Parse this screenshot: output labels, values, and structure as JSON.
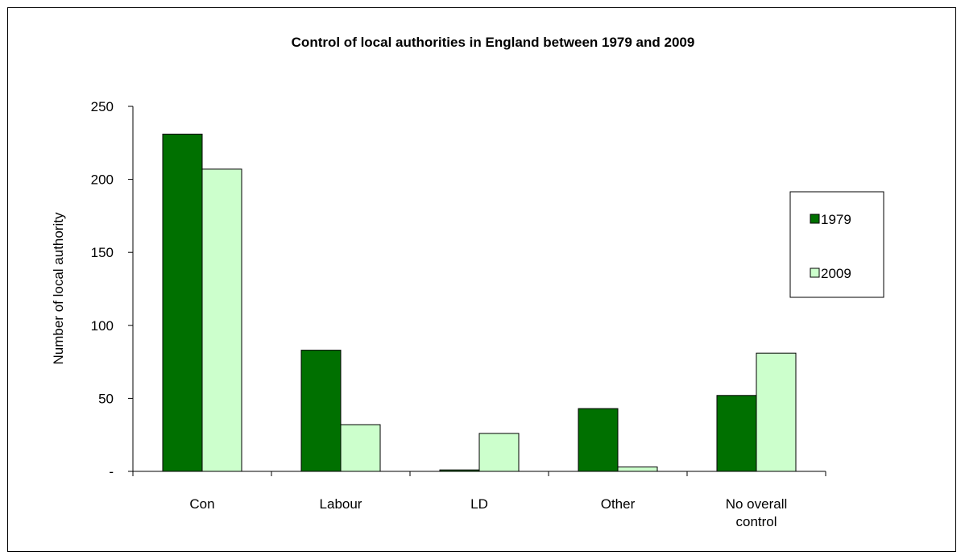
{
  "chart_data": {
    "type": "bar",
    "title": "Control of local authorities in England between 1979 and 2009",
    "xlabel": "",
    "ylabel": "Number of local authority",
    "ylim": [
      0,
      250
    ],
    "yticks": [
      {
        "value": 0,
        "label": "-"
      },
      {
        "value": 50,
        "label": "50"
      },
      {
        "value": 100,
        "label": "100"
      },
      {
        "value": 150,
        "label": "150"
      },
      {
        "value": 200,
        "label": "200"
      },
      {
        "value": 250,
        "label": "250"
      }
    ],
    "categories": [
      [
        "Con"
      ],
      [
        "Labour"
      ],
      [
        "LD"
      ],
      [
        "Other"
      ],
      [
        "No overall",
        "control"
      ]
    ],
    "series": [
      {
        "name": "1979",
        "color": "#007000",
        "values": [
          231,
          83,
          1,
          43,
          52
        ]
      },
      {
        "name": "2009",
        "color": "#ccffcc",
        "values": [
          207,
          32,
          26,
          3,
          81
        ]
      }
    ],
    "grid": false,
    "legend": "right"
  }
}
